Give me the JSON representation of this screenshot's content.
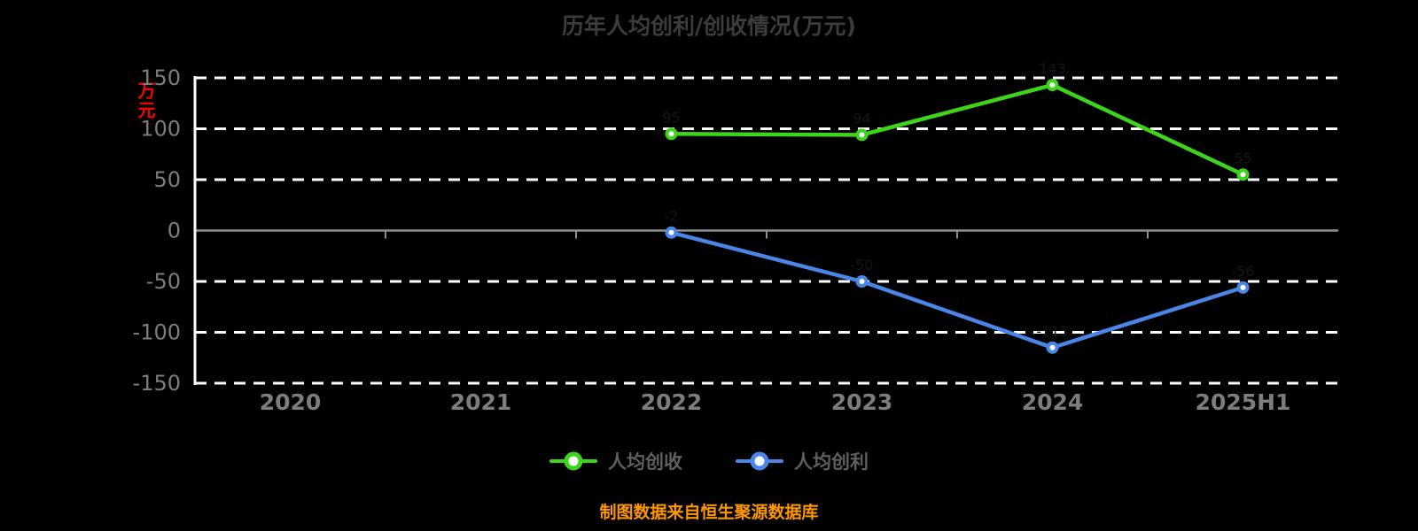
{
  "footer": "制图数据来自恒生聚源数据库",
  "colors": {
    "background": "#000000",
    "grid_line": "#ffffff",
    "zero_line": "#8f8f8f",
    "tick_label": "#7d7d7d",
    "title": "#3c3c3c",
    "y_unit_label": "#ff0000",
    "footer": "#ff9800",
    "series_revenue": "#3fd41c",
    "series_profit": "#4a86e8"
  },
  "chart_data": {
    "type": "line",
    "title": "历年人均创利/创收情况(万元)",
    "ylabel": "万元",
    "categories": [
      "2020",
      "2021",
      "2022",
      "2023",
      "2024",
      "2025H1"
    ],
    "series": [
      {
        "name": "人均创收",
        "color": "#3fd41c",
        "values": [
          null,
          null,
          95,
          94,
          143,
          55
        ]
      },
      {
        "name": "人均创利",
        "color": "#4a86e8",
        "values": [
          null,
          null,
          -2,
          -50,
          -115,
          -56
        ]
      }
    ],
    "ylim": [
      -150,
      150
    ],
    "ytick_step": 50,
    "grid": "horizontal-dashed",
    "legend_position": "bottom"
  }
}
